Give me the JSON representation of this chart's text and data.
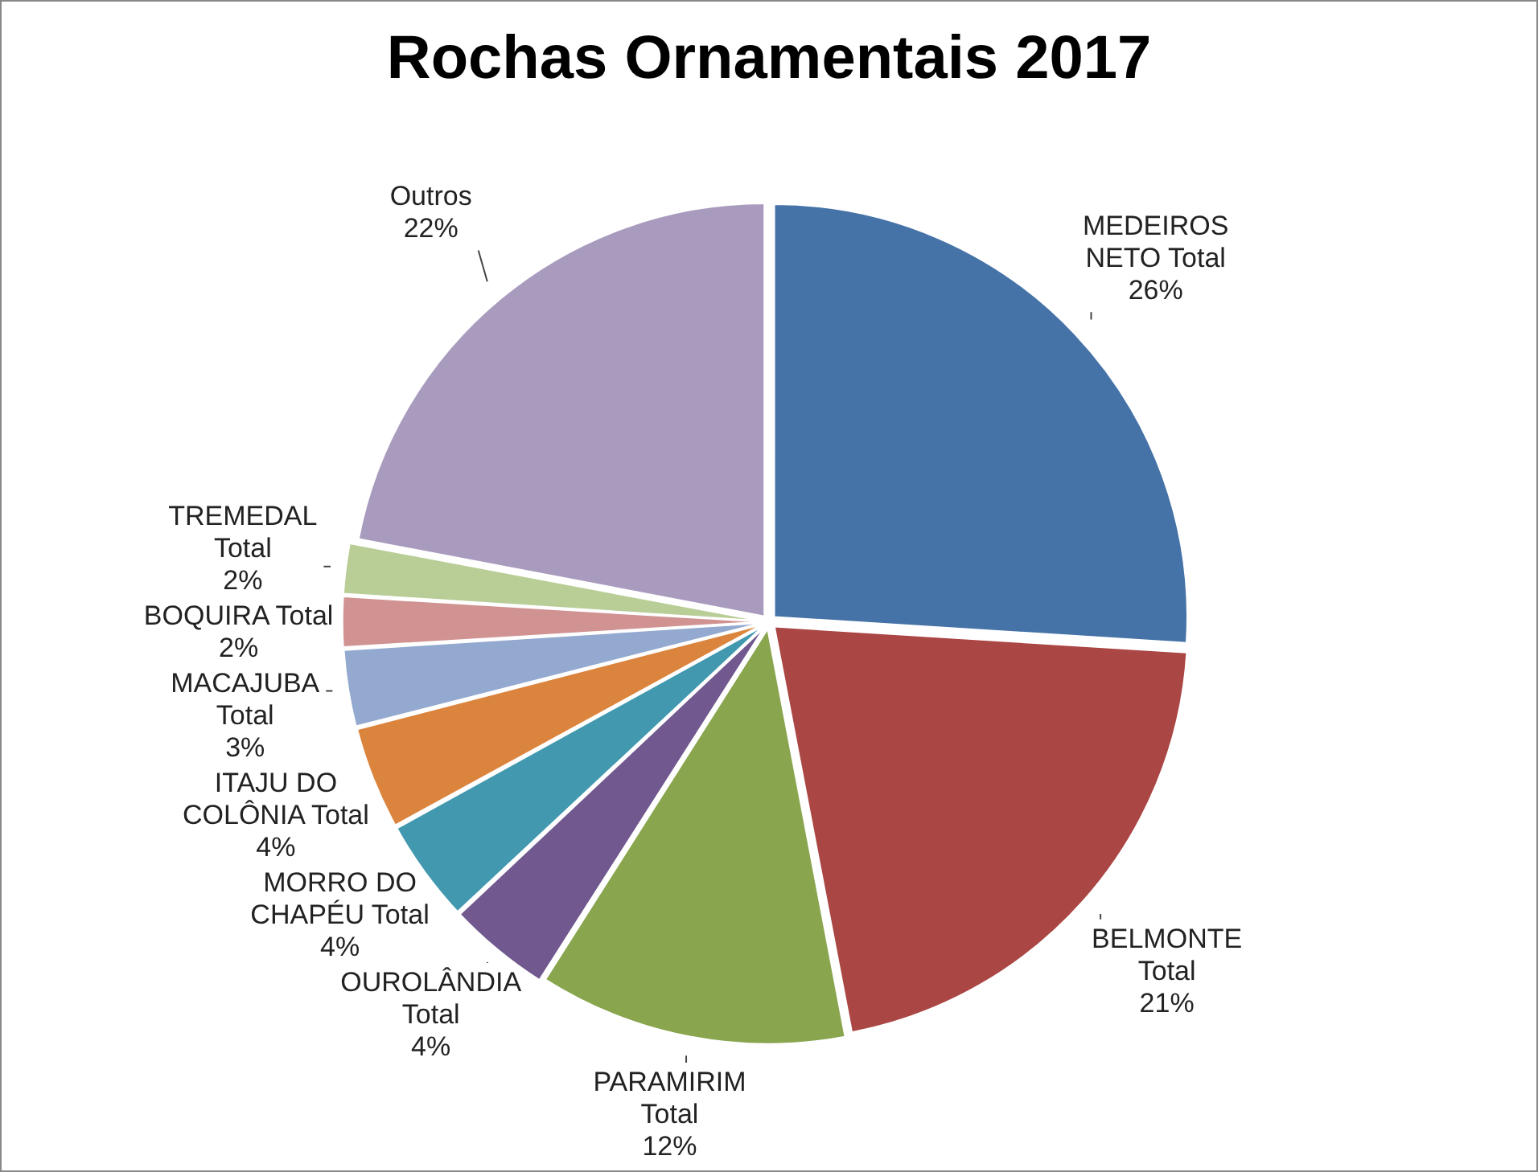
{
  "chart_data": {
    "type": "pie",
    "title": "Rochas Ornamentais 2017",
    "categories": [
      "MEDEIROS NETO Total",
      "BELMONTE Total",
      "PARAMIRIM Total",
      "OUROLÂNDIA Total",
      "MORRO DO CHAPÉU Total",
      "ITAJU DO COLÔNIA Total",
      "MACAJUBA Total",
      "BOQUIRA Total",
      "TREMEDAL Total",
      "Outros"
    ],
    "values": [
      26,
      21,
      12,
      4,
      4,
      4,
      3,
      2,
      2,
      22
    ],
    "colors": [
      "#4572a7",
      "#aa4643",
      "#89a54e",
      "#71588f",
      "#4198af",
      "#db843d",
      "#93a9cf",
      "#d19392",
      "#b9cd96",
      "#a99bbd"
    ],
    "value_labels": [
      "26%",
      "21%",
      "12%",
      "4%",
      "4%",
      "4%",
      "3%",
      "2%",
      "2%",
      "22%"
    ],
    "legend": false
  }
}
